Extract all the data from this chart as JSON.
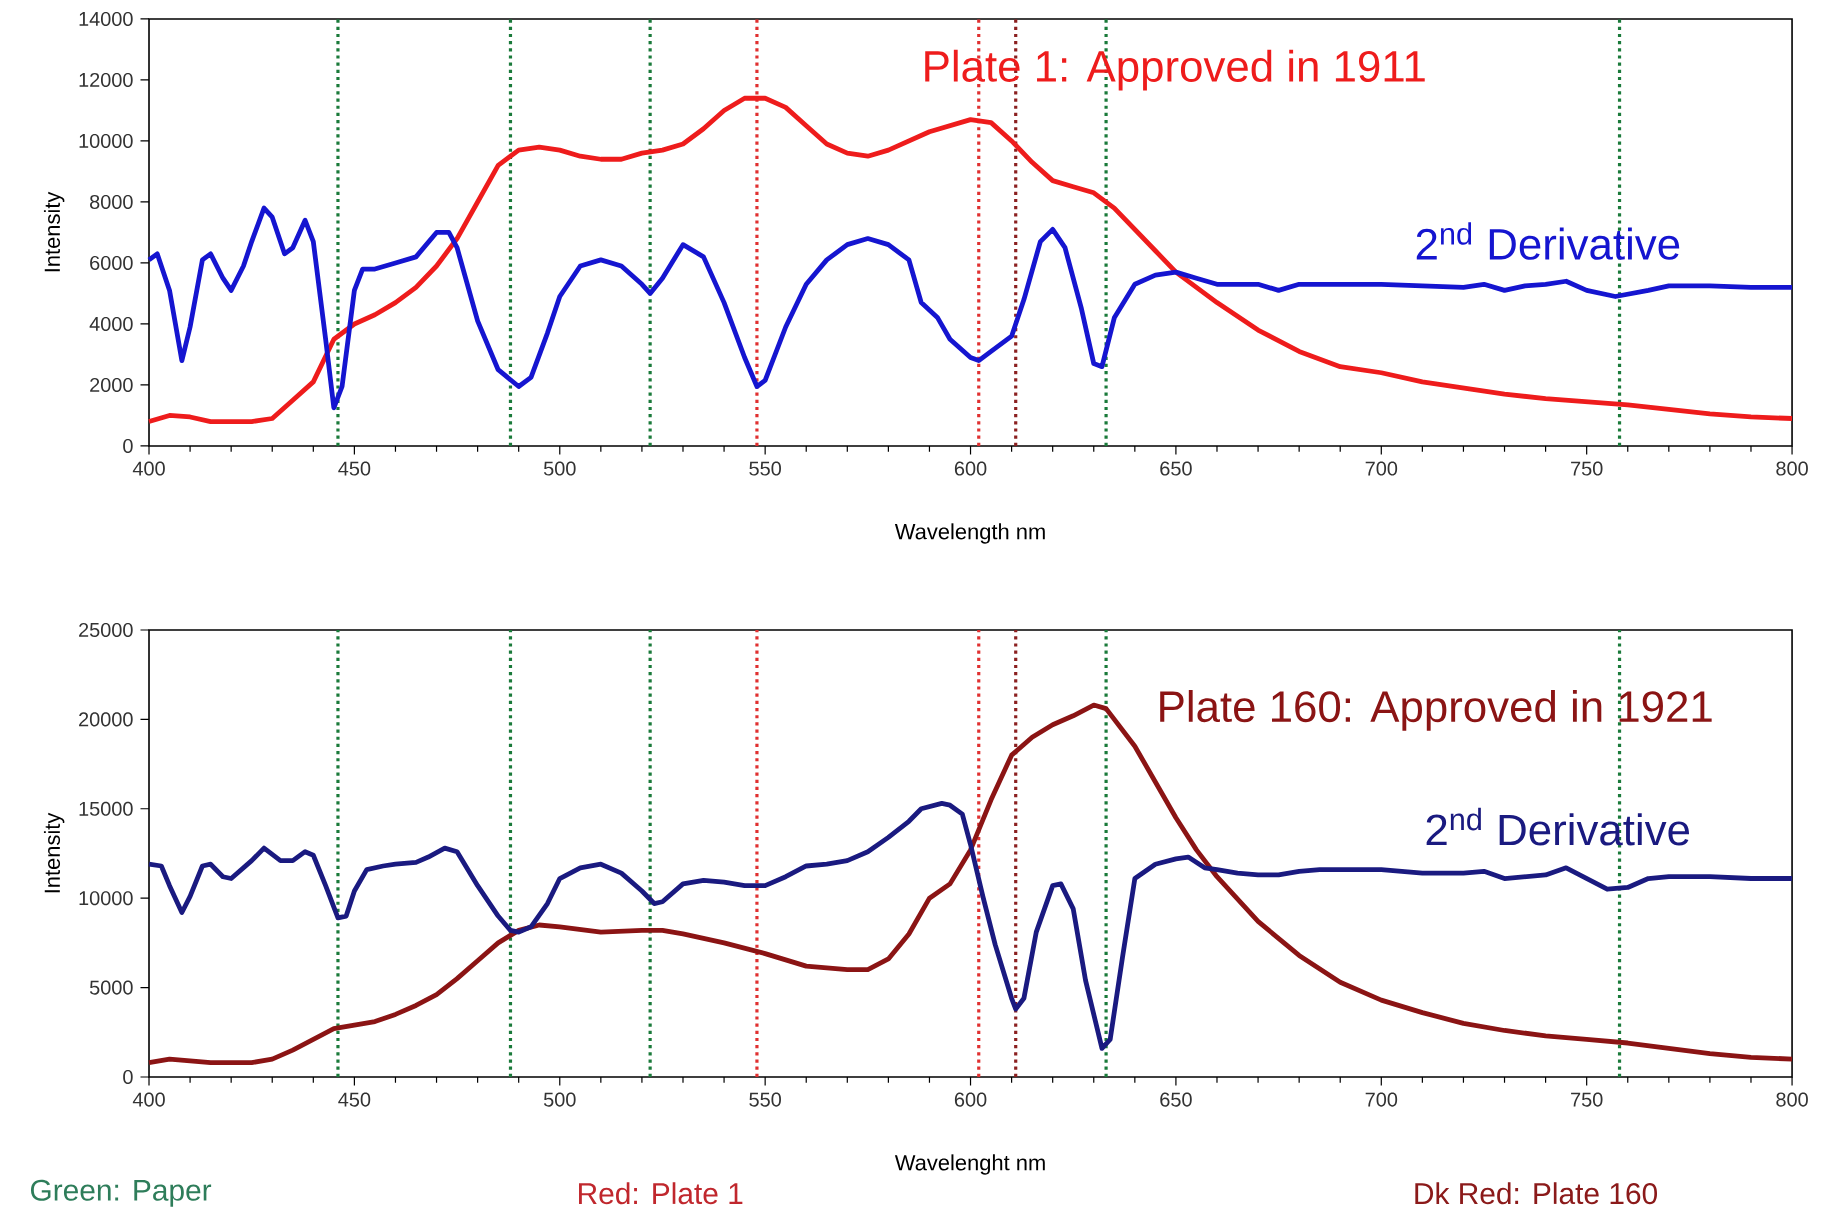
{
  "chart_data": [
    {
      "type": "line",
      "xlabel": "Wavelength nm",
      "ylabel": "Intensity",
      "xlim": [
        400,
        800
      ],
      "xticks": [
        400,
        450,
        500,
        550,
        600,
        650,
        700,
        750,
        800
      ],
      "ylim": [
        0,
        14000
      ],
      "yticks": [
        0,
        2000,
        4000,
        6000,
        8000,
        10000,
        12000,
        14000
      ],
      "legend": false,
      "marker": "none",
      "line_style": "solid",
      "ref_lines": [
        {
          "axis": "x",
          "value": 446,
          "color": "#1a7a3a"
        },
        {
          "axis": "x",
          "value": 488,
          "color": "#1a7a3a"
        },
        {
          "axis": "x",
          "value": 522,
          "color": "#1a7a3a"
        },
        {
          "axis": "x",
          "value": 548,
          "color": "#e03030"
        },
        {
          "axis": "x",
          "value": 602,
          "color": "#e03030"
        },
        {
          "axis": "x",
          "value": 611,
          "color": "#8b2020"
        },
        {
          "axis": "x",
          "value": 633,
          "color": "#1a7a3a"
        },
        {
          "axis": "x",
          "value": 758,
          "color": "#1a7a3a"
        }
      ],
      "series": [
        {
          "name": "Plate 1: Approved in 1911",
          "color": "#ee1c1c",
          "x": [
            400,
            405,
            410,
            415,
            420,
            425,
            430,
            435,
            440,
            445,
            450,
            455,
            460,
            465,
            470,
            475,
            480,
            485,
            490,
            495,
            500,
            505,
            510,
            515,
            520,
            525,
            530,
            535,
            540,
            545,
            550,
            555,
            560,
            565,
            570,
            575,
            580,
            590,
            600,
            605,
            610,
            615,
            620,
            625,
            630,
            635,
            640,
            645,
            650,
            660,
            670,
            680,
            690,
            700,
            710,
            720,
            730,
            740,
            750,
            760,
            770,
            780,
            790,
            800
          ],
          "values": [
            800,
            1000,
            950,
            800,
            800,
            800,
            900,
            1500,
            2100,
            3500,
            4000,
            4300,
            4700,
            5200,
            5900,
            6800,
            8000,
            9200,
            9700,
            9800,
            9700,
            9500,
            9400,
            9400,
            9600,
            9700,
            9900,
            10400,
            11000,
            11400,
            11400,
            11100,
            10500,
            9900,
            9600,
            9500,
            9700,
            10300,
            10700,
            10600,
            10000,
            9300,
            8700,
            8500,
            8300,
            7800,
            7100,
            6400,
            5700,
            4700,
            3800,
            3100,
            2600,
            2400,
            2100,
            1900,
            1700,
            1550,
            1450,
            1350,
            1200,
            1050,
            950,
            900
          ]
        },
        {
          "name": "2$^{nd}$ Derivative",
          "color": "#1515d0",
          "x": [
            400,
            402,
            405,
            408,
            410,
            413,
            415,
            418,
            420,
            423,
            425,
            428,
            430,
            433,
            435,
            438,
            440,
            443,
            445,
            447,
            450,
            452,
            455,
            460,
            465,
            470,
            473,
            475,
            480,
            485,
            490,
            493,
            497,
            500,
            505,
            510,
            515,
            520,
            522,
            525,
            530,
            535,
            540,
            545,
            548,
            550,
            555,
            560,
            565,
            570,
            575,
            580,
            585,
            588,
            592,
            595,
            600,
            602,
            605,
            610,
            613,
            617,
            620,
            623,
            627,
            630,
            632,
            635,
            640,
            645,
            650,
            655,
            660,
            670,
            675,
            680,
            690,
            700,
            710,
            720,
            725,
            730,
            735,
            740,
            745,
            750,
            757,
            765,
            770,
            780,
            790,
            800
          ],
          "values": [
            6100,
            6300,
            5100,
            2800,
            3900,
            6100,
            6300,
            5500,
            5100,
            5900,
            6700,
            7800,
            7500,
            6300,
            6500,
            7400,
            6700,
            3500,
            1250,
            1950,
            5100,
            5800,
            5800,
            6000,
            6200,
            7000,
            7000,
            6500,
            4100,
            2500,
            1950,
            2250,
            3700,
            4900,
            5900,
            6100,
            5900,
            5300,
            5000,
            5500,
            6600,
            6200,
            4700,
            2900,
            1950,
            2150,
            3900,
            5300,
            6100,
            6600,
            6800,
            6600,
            6100,
            4700,
            4200,
            3500,
            2900,
            2800,
            3100,
            3600,
            4800,
            6700,
            7100,
            6500,
            4500,
            2700,
            2600,
            4200,
            5300,
            5600,
            5700,
            5500,
            5300,
            5300,
            5100,
            5300,
            5300,
            5300,
            5250,
            5200,
            5300,
            5100,
            5250,
            5300,
            5400,
            5100,
            4900,
            5100,
            5250,
            5250,
            5200,
            5200
          ]
        }
      ]
    },
    {
      "type": "line",
      "xlabel": "Wavelenght nm",
      "ylabel": "Intensity",
      "xlim": [
        400,
        800
      ],
      "xticks": [
        400,
        450,
        500,
        550,
        600,
        650,
        700,
        750,
        800
      ],
      "ylim": [
        0,
        25000
      ],
      "yticks": [
        0,
        5000,
        10000,
        15000,
        20000,
        25000
      ],
      "legend": false,
      "marker": "none",
      "line_style": "solid",
      "annotations": [
        "Green: Paper",
        "Red: Plate 1",
        "Dk Red: Plate 160"
      ],
      "ref_lines": [
        {
          "axis": "x",
          "value": 446,
          "color": "#1a7a3a"
        },
        {
          "axis": "x",
          "value": 488,
          "color": "#1a7a3a"
        },
        {
          "axis": "x",
          "value": 522,
          "color": "#1a7a3a"
        },
        {
          "axis": "x",
          "value": 548,
          "color": "#e03030"
        },
        {
          "axis": "x",
          "value": 602,
          "color": "#e03030"
        },
        {
          "axis": "x",
          "value": 611,
          "color": "#8b2020"
        },
        {
          "axis": "x",
          "value": 633,
          "color": "#1a7a3a"
        },
        {
          "axis": "x",
          "value": 758,
          "color": "#1a7a3a"
        }
      ],
      "series": [
        {
          "name": "Plate 160: Approved in 1921",
          "color": "#8b1414",
          "x": [
            400,
            405,
            410,
            415,
            420,
            425,
            430,
            435,
            440,
            445,
            450,
            455,
            460,
            465,
            470,
            475,
            480,
            485,
            490,
            495,
            500,
            510,
            520,
            525,
            530,
            540,
            550,
            560,
            570,
            575,
            580,
            585,
            590,
            595,
            600,
            605,
            610,
            615,
            620,
            625,
            630,
            633,
            640,
            645,
            650,
            655,
            660,
            670,
            680,
            690,
            700,
            710,
            720,
            730,
            740,
            750,
            760,
            770,
            780,
            790,
            800
          ],
          "values": [
            800,
            1000,
            900,
            800,
            800,
            800,
            1000,
            1500,
            2100,
            2700,
            2900,
            3100,
            3500,
            4000,
            4600,
            5500,
            6500,
            7500,
            8200,
            8500,
            8400,
            8100,
            8200,
            8200,
            8000,
            7500,
            6900,
            6200,
            6000,
            6000,
            6600,
            8000,
            10000,
            10800,
            12700,
            15500,
            18000,
            19000,
            19700,
            20200,
            20800,
            20600,
            18500,
            16500,
            14500,
            12700,
            11200,
            8700,
            6800,
            5300,
            4300,
            3600,
            3000,
            2600,
            2300,
            2100,
            1900,
            1600,
            1300,
            1100,
            1000
          ]
        },
        {
          "name": "2$^{nd}$ Derivative",
          "color": "#1a1a80",
          "x": [
            400,
            403,
            405,
            408,
            410,
            413,
            415,
            418,
            420,
            425,
            428,
            432,
            435,
            438,
            440,
            443,
            446,
            448,
            450,
            453,
            457,
            460,
            465,
            468,
            472,
            475,
            480,
            485,
            488,
            490,
            493,
            497,
            500,
            505,
            510,
            515,
            520,
            523,
            525,
            530,
            535,
            540,
            545,
            550,
            555,
            560,
            565,
            570,
            575,
            580,
            585,
            588,
            593,
            595,
            598,
            600,
            603,
            606,
            610,
            611,
            613,
            616,
            620,
            622,
            625,
            628,
            632,
            634,
            637,
            640,
            645,
            650,
            653,
            657,
            660,
            665,
            670,
            675,
            680,
            685,
            690,
            700,
            710,
            720,
            725,
            730,
            740,
            745,
            750,
            755,
            760,
            765,
            770,
            780,
            790,
            800
          ],
          "values": [
            11900,
            11800,
            10700,
            9200,
            10100,
            11800,
            11900,
            11200,
            11100,
            12100,
            12800,
            12100,
            12100,
            12600,
            12400,
            10700,
            8900,
            9000,
            10400,
            11600,
            11800,
            11900,
            12000,
            12300,
            12800,
            12600,
            10700,
            9000,
            8200,
            8100,
            8400,
            9700,
            11100,
            11700,
            11900,
            11400,
            10400,
            9700,
            9800,
            10800,
            11000,
            10900,
            10700,
            10700,
            11200,
            11800,
            11900,
            12100,
            12600,
            13400,
            14300,
            15000,
            15300,
            15200,
            14700,
            13000,
            10100,
            7400,
            4400,
            3800,
            4400,
            8100,
            10700,
            10800,
            9400,
            5400,
            1600,
            2100,
            6700,
            11100,
            11900,
            12200,
            12300,
            11700,
            11600,
            11400,
            11300,
            11300,
            11500,
            11600,
            11600,
            11600,
            11400,
            11400,
            11500,
            11100,
            11300,
            11700,
            11100,
            10500,
            10600,
            11100,
            11200,
            11200,
            11100,
            11100
          ]
        }
      ]
    }
  ]
}
